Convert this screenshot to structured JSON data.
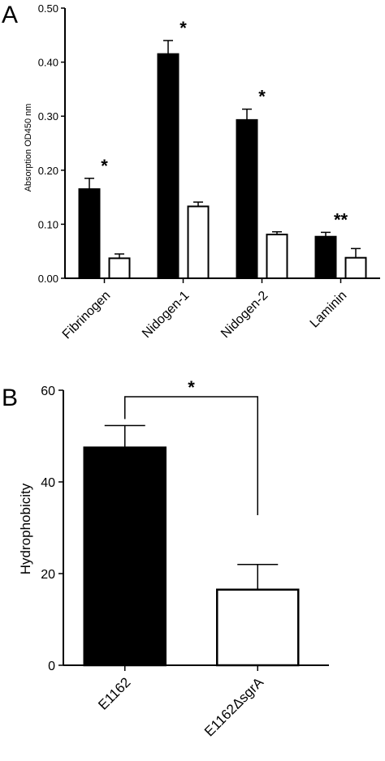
{
  "chart_data": [
    {
      "type": "bar",
      "panel_label": "A",
      "ylabel": "Absorption OD450 nm",
      "xlabel": "",
      "ylim": [
        0,
        0.5
      ],
      "yticks": [
        "0.00",
        "0.10",
        "0.20",
        "0.30",
        "0.40",
        "0.50"
      ],
      "categories": [
        "Fibrinogen",
        "Nidogen-1",
        "Nidogen-2",
        "Laminin"
      ],
      "series": [
        {
          "values": [
            0.165,
            0.415,
            0.293,
            0.077
          ],
          "errors": [
            0.02,
            0.025,
            0.02,
            0.008
          ],
          "color": "#000000"
        },
        {
          "values": [
            0.037,
            0.133,
            0.081,
            0.038
          ],
          "errors": [
            0.008,
            0.008,
            0.005,
            0.017
          ],
          "color": "#ffffff"
        }
      ],
      "significance": [
        "*",
        "*",
        "*",
        "**"
      ],
      "grid": false,
      "legend": "none"
    },
    {
      "type": "bar",
      "panel_label": "B",
      "ylabel": "Hydrophobicity",
      "xlabel": "",
      "ylim": [
        0,
        60
      ],
      "yticks": [
        "0",
        "20",
        "40",
        "60"
      ],
      "categories": [
        "E1162",
        "E1162ΔsgrA"
      ],
      "values": [
        47.5,
        16.5
      ],
      "errors": [
        4.8,
        5.5
      ],
      "colors": [
        "#000000",
        "#ffffff"
      ],
      "significance": "*",
      "grid": false,
      "legend": "none"
    }
  ]
}
